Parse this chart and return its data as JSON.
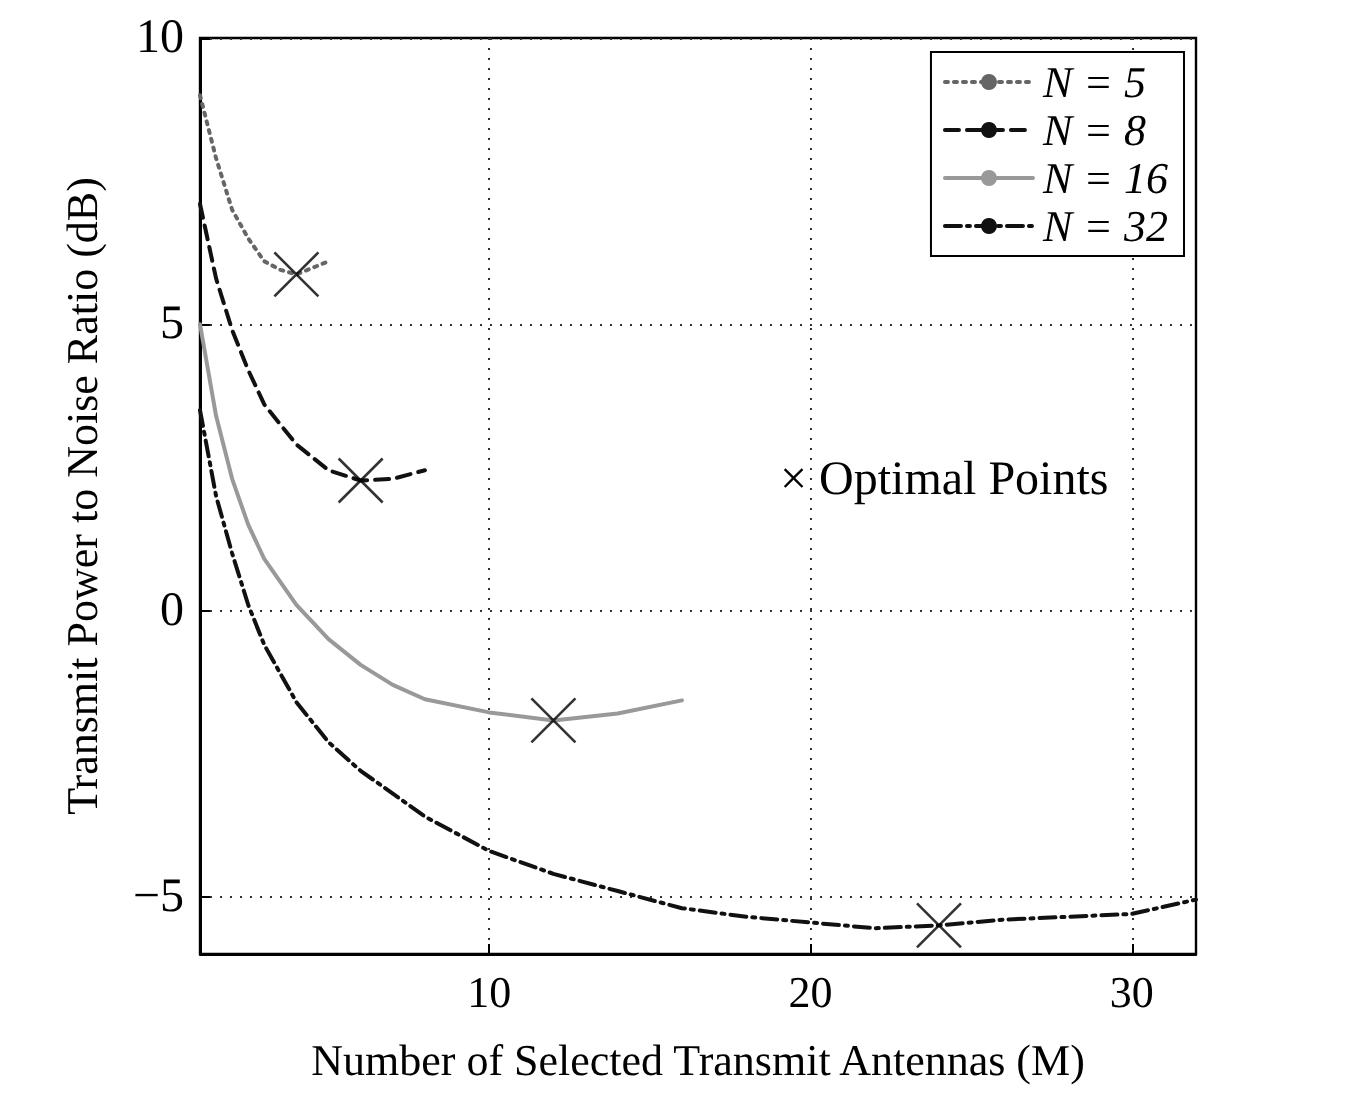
{
  "chart_data": {
    "type": "line",
    "xlabel": "Number of Selected Transmit Antennas (M)",
    "ylabel": "Transmit Power to Noise Ratio (dB)",
    "xlim": [
      1,
      32
    ],
    "xticks": [
      10,
      20,
      30
    ],
    "ylim": [
      -6,
      10
    ],
    "yticks": [
      {
        "value": -5,
        "label": "−5"
      },
      0,
      5,
      10
    ],
    "grid": true,
    "legend": "top right",
    "marker": "none",
    "annotations": [
      "× Optimal Points"
    ],
    "series": [
      {
        "name": "N = 5",
        "color": "#666666",
        "line_style": "dotted",
        "x": [
          1,
          1.5,
          2,
          2.5,
          3,
          3.5,
          4,
          5
        ],
        "values": [
          9.0,
          7.9,
          7.0,
          6.5,
          6.1,
          5.95,
          5.87,
          6.1
        ]
      },
      {
        "name": "N = 8",
        "color": "#111111",
        "line_style": "dashed",
        "x": [
          1,
          1.5,
          2,
          2.5,
          3,
          4,
          5,
          6,
          7,
          8
        ],
        "values": [
          7.1,
          5.8,
          4.9,
          4.2,
          3.6,
          2.9,
          2.45,
          2.27,
          2.3,
          2.45
        ]
      },
      {
        "name": "N = 16",
        "color": "#999999",
        "line_style": "solid",
        "x": [
          1,
          1.5,
          2,
          2.5,
          3,
          4,
          5,
          6,
          7,
          8,
          10,
          12,
          14,
          16
        ],
        "values": [
          5.0,
          3.4,
          2.3,
          1.5,
          0.9,
          0.1,
          -0.5,
          -0.95,
          -1.3,
          -1.55,
          -1.78,
          -1.92,
          -1.8,
          -1.57
        ]
      },
      {
        "name": "N = 32",
        "color": "#111111",
        "line_style": "dashdot",
        "x": [
          1,
          1.5,
          2,
          2.5,
          3,
          4,
          5,
          6,
          8,
          10,
          12,
          14,
          16,
          18,
          20,
          22,
          24,
          26,
          28,
          30,
          32
        ],
        "values": [
          3.5,
          2.0,
          1.0,
          0.1,
          -0.6,
          -1.6,
          -2.3,
          -2.8,
          -3.6,
          -4.2,
          -4.6,
          -4.9,
          -5.2,
          -5.35,
          -5.45,
          -5.55,
          -5.5,
          -5.4,
          -5.35,
          -5.3,
          -5.05
        ]
      },
      {
        "type": "scatter",
        "color": "#000000",
        "marker": "cross",
        "x": [
          4,
          6,
          12,
          24
        ],
        "values": [
          5.87,
          2.27,
          -1.92,
          -5.5
        ]
      }
    ]
  }
}
